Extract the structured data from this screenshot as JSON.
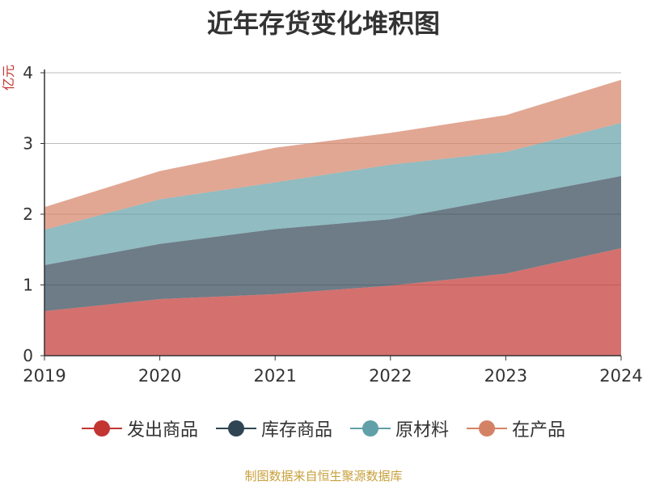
{
  "chart_data": {
    "type": "area",
    "stacked": true,
    "title": "近年存货变化堆积图",
    "ylabel": "亿元",
    "x": [
      "2019",
      "2020",
      "2021",
      "2022",
      "2023",
      "2024"
    ],
    "ylim": [
      0,
      4
    ],
    "yticks": [
      0,
      1,
      2,
      3,
      4
    ],
    "grid": true,
    "legend_position": "bottom",
    "series": [
      {
        "name": "发出商品",
        "color": "#c23531",
        "values": [
          0.63,
          0.8,
          0.87,
          0.99,
          1.16,
          1.52
        ]
      },
      {
        "name": "库存商品",
        "color": "#2f4554",
        "values": [
          0.65,
          0.78,
          0.92,
          0.94,
          1.07,
          1.02
        ]
      },
      {
        "name": "原材料",
        "color": "#61a0a8",
        "values": [
          0.5,
          0.63,
          0.66,
          0.77,
          0.65,
          0.75
        ]
      },
      {
        "name": "在产品",
        "color": "#d48265",
        "values": [
          0.32,
          0.4,
          0.49,
          0.45,
          0.52,
          0.61
        ]
      }
    ]
  },
  "source": "制图数据来自恒生聚源数据库"
}
